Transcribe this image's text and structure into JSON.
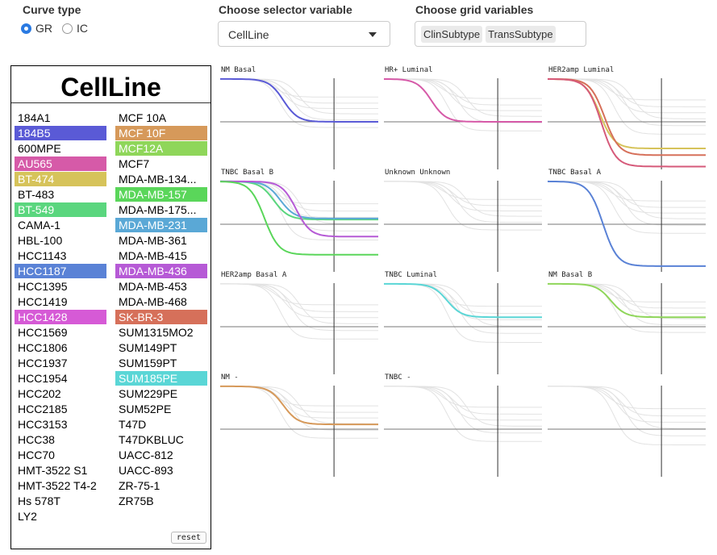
{
  "controls": {
    "curve_type_label": "Curve type",
    "curve_type_options": [
      {
        "label": "GR",
        "selected": true
      },
      {
        "label": "IC",
        "selected": false
      }
    ],
    "selector_label": "Choose selector variable",
    "selector_value": "CellLine",
    "grid_label": "Choose grid variables",
    "grid_values": [
      "ClinSubtype",
      "TransSubtype"
    ]
  },
  "panel": {
    "title": "CellLine",
    "reset_label": "reset",
    "left_col": [
      {
        "name": "184A1"
      },
      {
        "name": "184B5",
        "color": "#5a5ad6"
      },
      {
        "name": "600MPE"
      },
      {
        "name": "AU565",
        "color": "#d65aa8"
      },
      {
        "name": "BT-474",
        "color": "#d6c35a"
      },
      {
        "name": "BT-483"
      },
      {
        "name": "BT-549",
        "color": "#5ad67e"
      },
      {
        "name": "CAMA-1"
      },
      {
        "name": "HBL-100"
      },
      {
        "name": "HCC1143"
      },
      {
        "name": "HCC1187",
        "color": "#5a82d6"
      },
      {
        "name": "HCC1395"
      },
      {
        "name": "HCC1419"
      },
      {
        "name": "HCC1428",
        "color": "#d65ad6"
      },
      {
        "name": "HCC1569"
      },
      {
        "name": "HCC1806"
      },
      {
        "name": "HCC1937"
      },
      {
        "name": "HCC1954"
      },
      {
        "name": "HCC202"
      },
      {
        "name": "HCC2185"
      },
      {
        "name": "HCC3153"
      },
      {
        "name": "HCC38"
      },
      {
        "name": "HCC70"
      },
      {
        "name": "HMT-3522 S1"
      },
      {
        "name": "HMT-3522 T4-2"
      },
      {
        "name": "Hs 578T"
      },
      {
        "name": "LY2"
      }
    ],
    "right_col": [
      {
        "name": "MCF 10A"
      },
      {
        "name": "MCF 10F",
        "color": "#d6995a"
      },
      {
        "name": "MCF12A",
        "color": "#8fd65a"
      },
      {
        "name": "MCF7"
      },
      {
        "name": "MDA-MB-134..."
      },
      {
        "name": "MDA-MB-157",
        "color": "#5ad65a"
      },
      {
        "name": "MDA-MB-175..."
      },
      {
        "name": "MDA-MB-231",
        "color": "#5aa8d6"
      },
      {
        "name": "MDA-MB-361"
      },
      {
        "name": "MDA-MB-415"
      },
      {
        "name": "MDA-MB-436",
        "color": "#b65ad6"
      },
      {
        "name": "MDA-MB-453"
      },
      {
        "name": "MDA-MB-468"
      },
      {
        "name": "SK-BR-3",
        "color": "#d6705a"
      },
      {
        "name": "SUM1315MO2"
      },
      {
        "name": "SUM149PT"
      },
      {
        "name": "SUM159PT"
      },
      {
        "name": "SUM185PE",
        "color": "#5ad6d6"
      },
      {
        "name": "SUM229PE"
      },
      {
        "name": "SUM52PE"
      },
      {
        "name": "T47D"
      },
      {
        "name": "T47DKBLUC"
      },
      {
        "name": "UACC-812"
      },
      {
        "name": "UACC-893"
      },
      {
        "name": "ZR-75-1"
      },
      {
        "name": "ZR75B"
      }
    ]
  },
  "facets": [
    {
      "title": "NM Basal",
      "curves": [
        {
          "color": "#5a5ad6",
          "start": 0.05,
          "end": 0.5,
          "mid": 0.4
        }
      ]
    },
    {
      "title": "HR+ Luminal",
      "curves": [
        {
          "color": "#d65aa8",
          "start": 0.05,
          "end": 0.5,
          "mid": 0.3
        }
      ]
    },
    {
      "title": "HER2amp Luminal",
      "curves": [
        {
          "color": "#d6c35a",
          "start": 0.05,
          "end": 0.78,
          "mid": 0.33
        },
        {
          "color": "#d6705a",
          "start": 0.05,
          "end": 0.85,
          "mid": 0.36
        },
        {
          "color": "#d65a7a",
          "start": 0.05,
          "end": 0.97,
          "mid": 0.34
        }
      ]
    },
    {
      "title": "TNBC Basal B",
      "curves": [
        {
          "color": "#5ad67e",
          "start": 0.05,
          "end": 0.45,
          "mid": 0.34
        },
        {
          "color": "#5aa8d6",
          "start": 0.05,
          "end": 0.44,
          "mid": 0.38
        },
        {
          "color": "#b65ad6",
          "start": 0.05,
          "end": 0.63,
          "mid": 0.48
        },
        {
          "color": "#5ad65a",
          "start": 0.05,
          "end": 0.82,
          "mid": 0.28
        }
      ]
    },
    {
      "title": "Unknown Unknown",
      "curves": []
    },
    {
      "title": "TNBC Basal A",
      "curves": [
        {
          "color": "#5a82d6",
          "start": 0.05,
          "end": 0.94,
          "mid": 0.35
        }
      ]
    },
    {
      "title": "HER2amp Basal A",
      "curves": []
    },
    {
      "title": "TNBC Luminal",
      "curves": [
        {
          "color": "#5ad6d6",
          "start": 0.05,
          "end": 0.4,
          "mid": 0.4
        }
      ]
    },
    {
      "title": "NM Basal B",
      "curves": [
        {
          "color": "#8fd65a",
          "start": 0.05,
          "end": 0.4,
          "mid": 0.4
        }
      ]
    },
    {
      "title": "NM -",
      "curves": [
        {
          "color": "#d6995a",
          "start": 0.05,
          "end": 0.45,
          "mid": 0.4
        }
      ]
    },
    {
      "title": "TNBC -",
      "curves": []
    },
    {
      "title": "",
      "curves": []
    }
  ]
}
